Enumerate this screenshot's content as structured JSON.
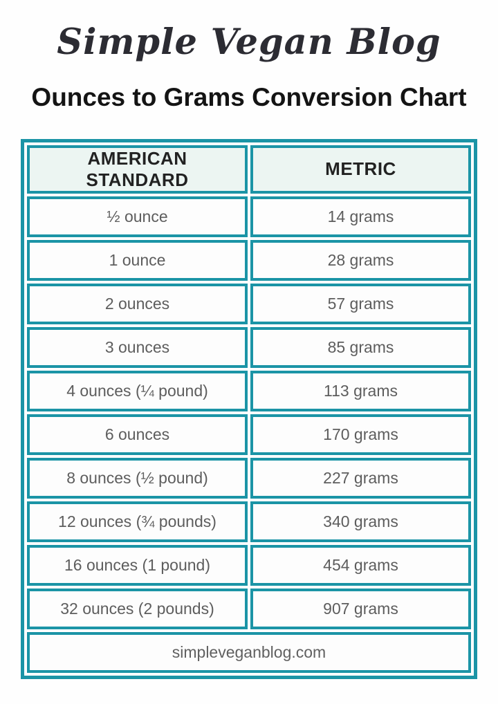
{
  "logo": {
    "text": "Simple Vegan Blog"
  },
  "colors": {
    "accent_teal": "#1b94a6",
    "header_cell_bg": "#ecf5f2",
    "data_cell_bg": "#fdfdfd",
    "data_text_gray": "#5d5d5d",
    "title_black": "#141414"
  },
  "chart_data": {
    "type": "table",
    "title": "Ounces to Grams Conversion Chart",
    "columns": [
      "AMERICAN STANDARD",
      "METRIC"
    ],
    "rows": [
      [
        "½ ounce",
        "14 grams"
      ],
      [
        "1 ounce",
        "28 grams"
      ],
      [
        "2 ounces",
        "57 grams"
      ],
      [
        "3 ounces",
        "85 grams"
      ],
      [
        "4 ounces (¼ pound)",
        "113 grams"
      ],
      [
        "6 ounces",
        "170 grams"
      ],
      [
        "8 ounces (½ pound)",
        "227 grams"
      ],
      [
        "12 ounces (¾ pounds)",
        "340 grams"
      ],
      [
        "16 ounces (1 pound)",
        "454 grams"
      ],
      [
        "32 ounces (2 pounds)",
        "907 grams"
      ]
    ],
    "footer": "simpleveganblog.com",
    "layout_hints": {
      "columns_split": "50/50",
      "border_style": "thick teal cell borders with white spacing gaps",
      "header_style": "bold uppercase on pale mint background"
    }
  }
}
